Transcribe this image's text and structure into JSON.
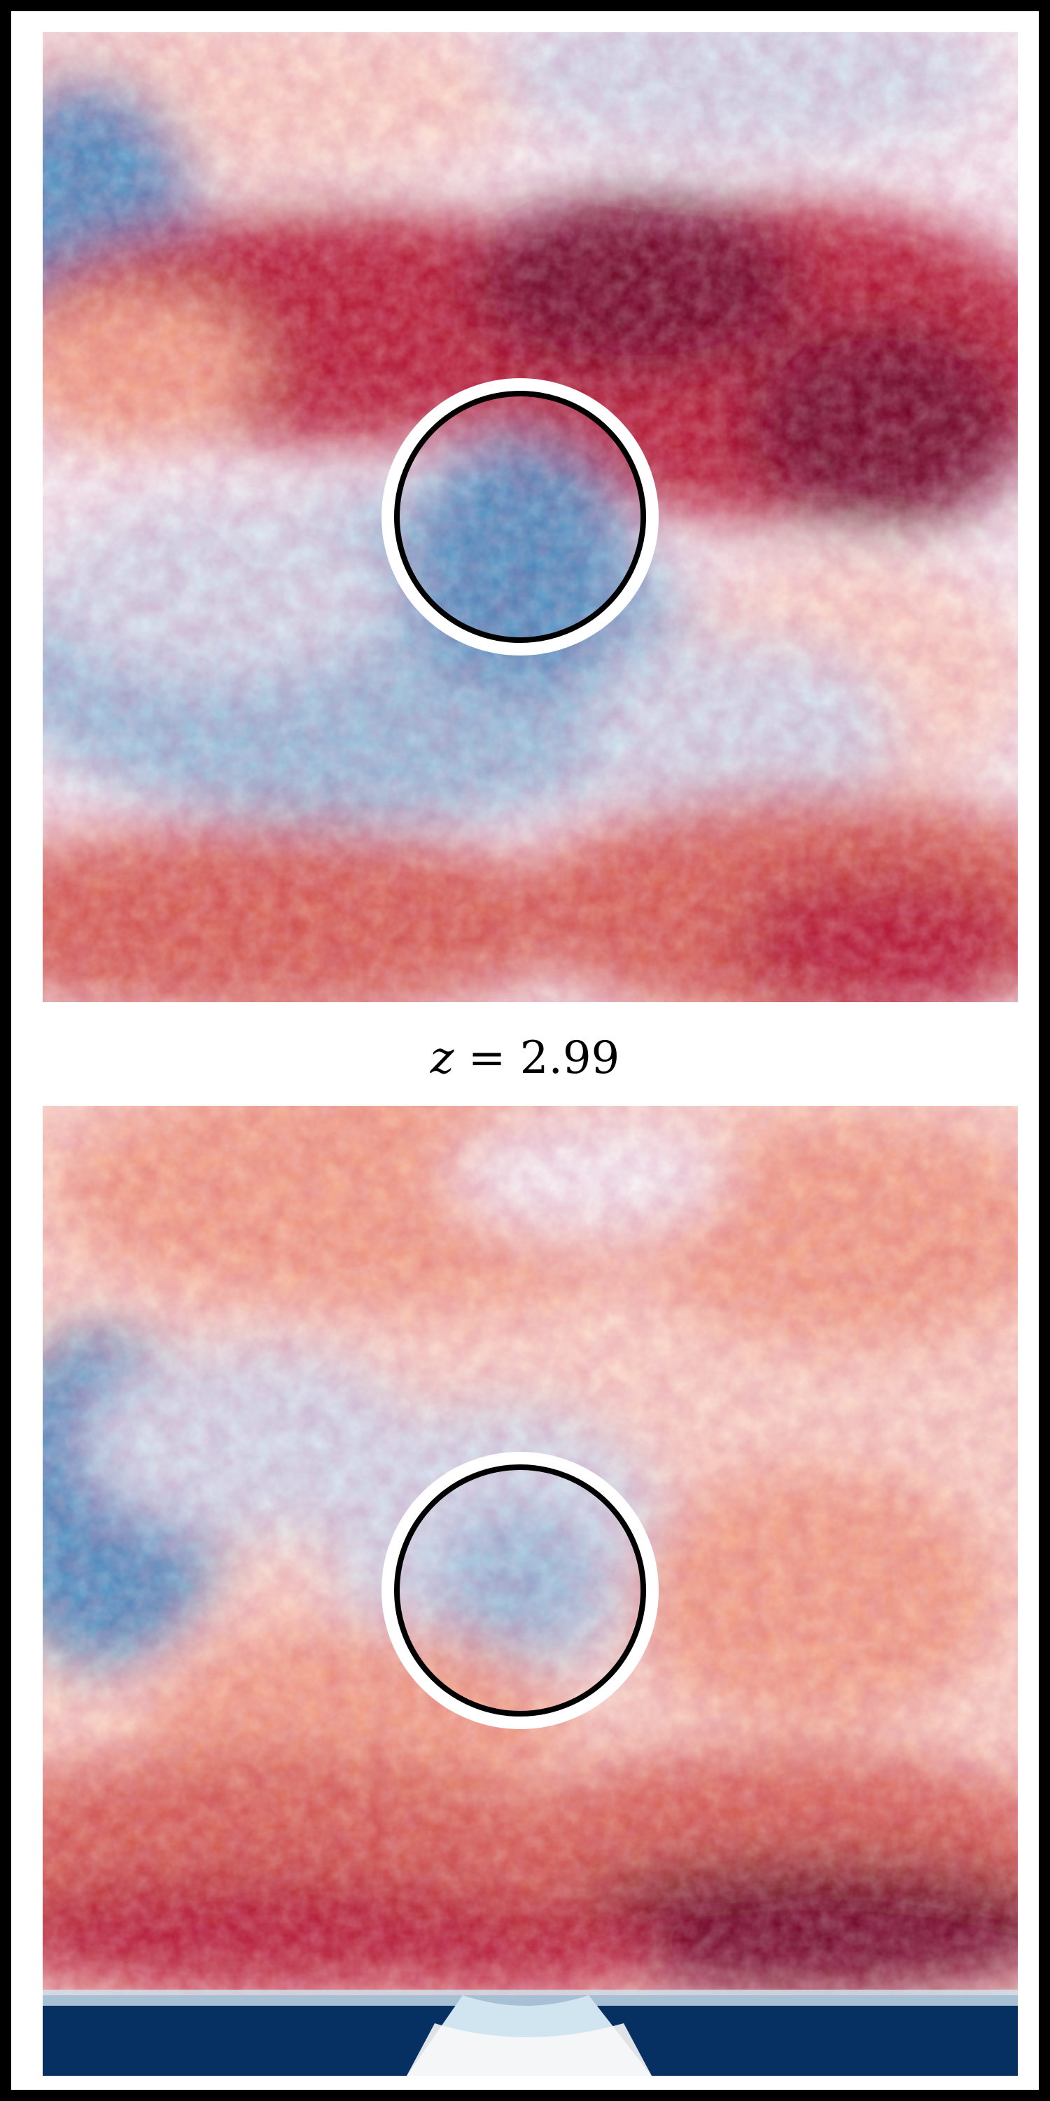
{
  "figure": {
    "caption_variable": "z",
    "caption_operator": "=",
    "caption_value": "2.99",
    "panels": [
      {
        "name": "upper-field-map",
        "marker": "circle"
      },
      {
        "name": "lower-field-map",
        "marker": "circle"
      }
    ],
    "colormap": {
      "name": "RdBu_r",
      "colors": {
        "deep_red": "#67001f",
        "red": "#b2182b",
        "light_red": "#d6604d",
        "salmon": "#f4a582",
        "pale_red": "#fddbc7",
        "neutral": "#f7f7f7",
        "pale_blue": "#d1e5f0",
        "light_blue": "#92c5de",
        "blue": "#4393c3",
        "dark_blue": "#2166ac",
        "deep_blue": "#053061"
      }
    }
  }
}
